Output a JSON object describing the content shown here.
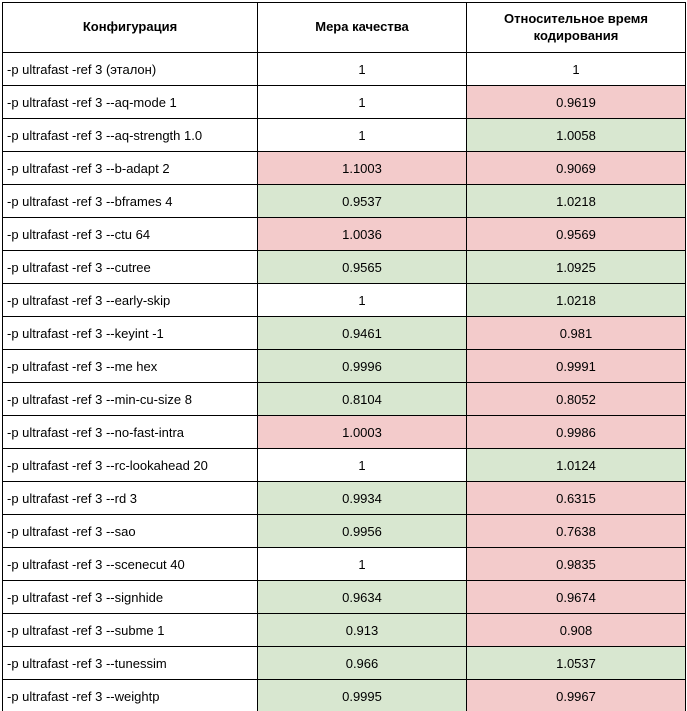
{
  "table": {
    "columns": [
      {
        "label": "Конфигурация"
      },
      {
        "label": "Мера качества"
      },
      {
        "label": "Относительное время кодирования"
      }
    ],
    "colors": {
      "white": "#ffffff",
      "green": "#d8e7d0",
      "red": "#f3cbcb",
      "border": "#000000"
    },
    "rows": [
      {
        "config": "-p ultrafast -ref 3 (эталон)",
        "quality": "1",
        "quality_bg": "white",
        "time": "1",
        "time_bg": "white"
      },
      {
        "config": "-p ultrafast -ref 3 --aq-mode 1",
        "quality": "1",
        "quality_bg": "white",
        "time": "0.9619",
        "time_bg": "red"
      },
      {
        "config": "-p ultrafast -ref 3 --aq-strength 1.0",
        "quality": "1",
        "quality_bg": "white",
        "time": "1.0058",
        "time_bg": "green"
      },
      {
        "config": "-p ultrafast -ref 3 --b-adapt 2",
        "quality": "1.1003",
        "quality_bg": "red",
        "time": "0.9069",
        "time_bg": "red"
      },
      {
        "config": "-p ultrafast -ref 3 --bframes 4",
        "quality": "0.9537",
        "quality_bg": "green",
        "time": "1.0218",
        "time_bg": "green"
      },
      {
        "config": "-p ultrafast -ref 3 --ctu 64",
        "quality": "1.0036",
        "quality_bg": "red",
        "time": "0.9569",
        "time_bg": "red"
      },
      {
        "config": "-p ultrafast -ref 3 --cutree",
        "quality": "0.9565",
        "quality_bg": "green",
        "time": "1.0925",
        "time_bg": "green"
      },
      {
        "config": "-p ultrafast -ref 3 --early-skip",
        "quality": "1",
        "quality_bg": "white",
        "time": "1.0218",
        "time_bg": "green"
      },
      {
        "config": "-p ultrafast -ref 3 --keyint -1",
        "quality": "0.9461",
        "quality_bg": "green",
        "time": "0.981",
        "time_bg": "red"
      },
      {
        "config": "-p ultrafast -ref 3 --me hex",
        "quality": "0.9996",
        "quality_bg": "green",
        "time": "0.9991",
        "time_bg": "red"
      },
      {
        "config": "-p ultrafast -ref 3 --min-cu-size 8",
        "quality": "0.8104",
        "quality_bg": "green",
        "time": "0.8052",
        "time_bg": "red"
      },
      {
        "config": "-p ultrafast -ref 3 --no-fast-intra",
        "quality": "1.0003",
        "quality_bg": "red",
        "time": "0.9986",
        "time_bg": "red"
      },
      {
        "config": "-p ultrafast -ref 3 --rc-lookahead 20",
        "quality": "1",
        "quality_bg": "white",
        "time": "1.0124",
        "time_bg": "green"
      },
      {
        "config": "-p ultrafast -ref 3 --rd 3",
        "quality": "0.9934",
        "quality_bg": "green",
        "time": "0.6315",
        "time_bg": "red"
      },
      {
        "config": "-p ultrafast -ref 3 --sao",
        "quality": "0.9956",
        "quality_bg": "green",
        "time": "0.7638",
        "time_bg": "red"
      },
      {
        "config": "-p ultrafast -ref 3 --scenecut 40",
        "quality": "1",
        "quality_bg": "white",
        "time": "0.9835",
        "time_bg": "red"
      },
      {
        "config": "-p ultrafast -ref 3 --signhide",
        "quality": "0.9634",
        "quality_bg": "green",
        "time": "0.9674",
        "time_bg": "red"
      },
      {
        "config": "-p ultrafast -ref 3 --subme 1",
        "quality": "0.913",
        "quality_bg": "green",
        "time": "0.908",
        "time_bg": "red"
      },
      {
        "config": "-p ultrafast -ref 3 --tunessim",
        "quality": "0.966",
        "quality_bg": "green",
        "time": "1.0537",
        "time_bg": "green"
      },
      {
        "config": "-p ultrafast -ref 3 --weightp",
        "quality": "0.9995",
        "quality_bg": "green",
        "time": "0.9967",
        "time_bg": "red"
      }
    ]
  }
}
